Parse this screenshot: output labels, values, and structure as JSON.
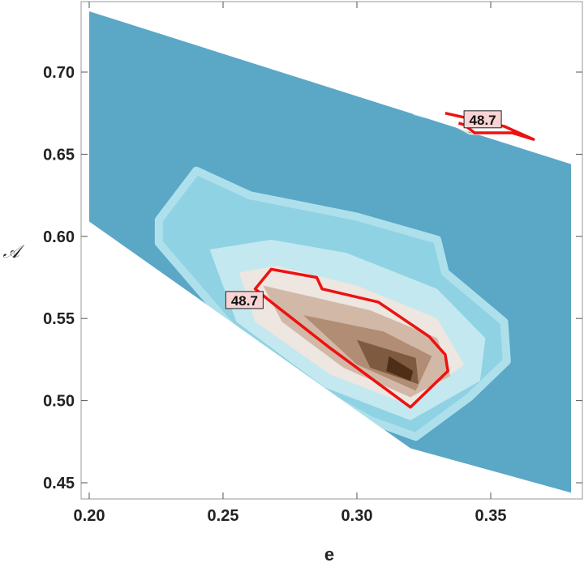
{
  "chart_data": {
    "type": "contour",
    "xlabel": "e",
    "ylabel": "𝒜",
    "xlim": [
      0.195,
      0.385
    ],
    "ylim": [
      0.435,
      0.74
    ],
    "x_ticks": [
      {
        "value": 0.2,
        "label": "0.20"
      },
      {
        "value": 0.25,
        "label": "0.25"
      },
      {
        "value": 0.3,
        "label": "0.30"
      },
      {
        "value": 0.35,
        "label": "0.35"
      }
    ],
    "y_ticks": [
      {
        "value": 0.45,
        "label": "0.45"
      },
      {
        "value": 0.5,
        "label": "0.50"
      },
      {
        "value": 0.55,
        "label": "0.55"
      },
      {
        "value": 0.6,
        "label": "0.60"
      },
      {
        "value": 0.65,
        "label": "0.65"
      },
      {
        "value": 0.7,
        "label": "0.70"
      }
    ],
    "colors": {
      "low": "#5aa7c6",
      "mid": "#f5ecea",
      "high": "#4a2814",
      "contour_line": "#ee1111",
      "label_bg": "#f8d4d4"
    },
    "domain_polygon": [
      [
        0.2,
        0.737
      ],
      [
        0.38,
        0.644
      ],
      [
        0.38,
        0.444
      ],
      [
        0.32,
        0.471
      ],
      [
        0.2,
        0.609
      ]
    ],
    "blob_lower": {
      "peak": [
        0.318,
        0.516
      ],
      "levels": [
        [
          [
            0.226,
            0.61
          ],
          [
            0.24,
            0.64
          ],
          [
            0.26,
            0.625
          ],
          [
            0.3,
            0.612
          ],
          [
            0.33,
            0.598
          ],
          [
            0.333,
            0.578
          ],
          [
            0.355,
            0.548
          ],
          [
            0.356,
            0.524
          ],
          [
            0.342,
            0.502
          ],
          [
            0.322,
            0.478
          ],
          [
            0.305,
            0.488
          ],
          [
            0.262,
            0.528
          ],
          [
            0.226,
            0.596
          ]
        ],
        [
          [
            0.245,
            0.592
          ],
          [
            0.268,
            0.598
          ],
          [
            0.296,
            0.59
          ],
          [
            0.33,
            0.568
          ],
          [
            0.348,
            0.538
          ],
          [
            0.346,
            0.512
          ],
          [
            0.32,
            0.488
          ],
          [
            0.288,
            0.508
          ],
          [
            0.255,
            0.548
          ]
        ],
        [
          [
            0.256,
            0.578
          ],
          [
            0.27,
            0.582
          ],
          [
            0.3,
            0.57
          ],
          [
            0.33,
            0.55
          ],
          [
            0.34,
            0.522
          ],
          [
            0.32,
            0.497
          ],
          [
            0.29,
            0.516
          ],
          [
            0.262,
            0.548
          ]
        ],
        [
          [
            0.265,
            0.57
          ],
          [
            0.305,
            0.555
          ],
          [
            0.33,
            0.538
          ],
          [
            0.335,
            0.515
          ],
          [
            0.32,
            0.502
          ],
          [
            0.295,
            0.52
          ],
          [
            0.272,
            0.548
          ]
        ],
        [
          [
            0.28,
            0.552
          ],
          [
            0.31,
            0.542
          ],
          [
            0.328,
            0.527
          ],
          [
            0.322,
            0.506
          ],
          [
            0.3,
            0.522
          ]
        ],
        [
          [
            0.3,
            0.537
          ],
          [
            0.322,
            0.526
          ],
          [
            0.323,
            0.51
          ],
          [
            0.305,
            0.52
          ]
        ],
        [
          [
            0.312,
            0.527
          ],
          [
            0.321,
            0.518
          ],
          [
            0.32,
            0.512
          ],
          [
            0.311,
            0.518
          ]
        ]
      ],
      "contour_48_7": [
        [
          0.262,
          0.568
        ],
        [
          0.268,
          0.58
        ],
        [
          0.285,
          0.575
        ],
        [
          0.287,
          0.568
        ],
        [
          0.308,
          0.56
        ],
        [
          0.327,
          0.539
        ],
        [
          0.333,
          0.528
        ],
        [
          0.334,
          0.518
        ],
        [
          0.32,
          0.496
        ],
        [
          0.29,
          0.532
        ],
        [
          0.268,
          0.56
        ]
      ],
      "label": {
        "text": "48.7",
        "x": 0.258,
        "y": 0.561
      }
    },
    "blob_upper": {
      "levels": [
        [
          [
            0.322,
            0.685
          ],
          [
            0.345,
            0.673
          ],
          [
            0.37,
            0.655
          ],
          [
            0.36,
            0.66
          ],
          [
            0.322,
            0.676
          ]
        ],
        [
          [
            0.33,
            0.68
          ],
          [
            0.35,
            0.668
          ],
          [
            0.362,
            0.66
          ],
          [
            0.342,
            0.662
          ],
          [
            0.328,
            0.674
          ]
        ],
        [
          [
            0.336,
            0.675
          ],
          [
            0.355,
            0.665
          ],
          [
            0.342,
            0.663
          ]
        ]
      ],
      "contour_48_7": [
        [
          0.333,
          0.675
        ],
        [
          0.355,
          0.667
        ],
        [
          0.366,
          0.659
        ],
        [
          0.358,
          0.663
        ],
        [
          0.344,
          0.663
        ],
        [
          0.34,
          0.668
        ],
        [
          0.338,
          0.669
        ]
      ],
      "label": {
        "text": "48.7",
        "x": 0.347,
        "y": 0.671
      }
    }
  }
}
